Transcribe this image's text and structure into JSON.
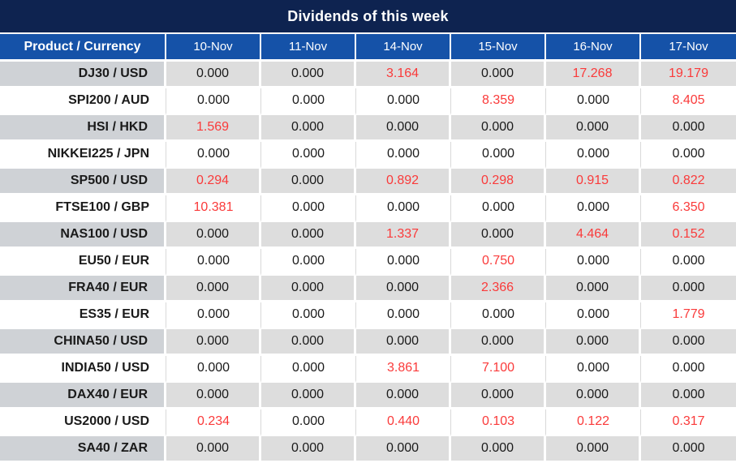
{
  "title": "Dividends of this week",
  "colors": {
    "title_bar_bg": "#0e2350",
    "header_row_bg": "#1552a8",
    "header_text": "#ffffff",
    "gray_row_label_bg": "#cfd2d6",
    "gray_row_cell_bg": "#dddddd",
    "white_row_bg": "#ffffff",
    "zero_value_text": "#1a1a1a",
    "nonzero_value_text": "#fa3a3a",
    "grid_line": "#d9d9d9"
  },
  "chart_data": {
    "type": "table",
    "title": "Dividends of this week",
    "columns": [
      "Product / Currency",
      "10-Nov",
      "11-Nov",
      "14-Nov",
      "15-Nov",
      "16-Nov",
      "17-Nov"
    ],
    "rows": [
      {
        "product": "DJ30 / USD",
        "values": [
          "0.000",
          "0.000",
          "3.164",
          "0.000",
          "17.268",
          "19.179"
        ]
      },
      {
        "product": "SPI200 / AUD",
        "values": [
          "0.000",
          "0.000",
          "0.000",
          "8.359",
          "0.000",
          "8.405"
        ]
      },
      {
        "product": "HSI / HKD",
        "values": [
          "1.569",
          "0.000",
          "0.000",
          "0.000",
          "0.000",
          "0.000"
        ]
      },
      {
        "product": "NIKKEI225 / JPN",
        "values": [
          "0.000",
          "0.000",
          "0.000",
          "0.000",
          "0.000",
          "0.000"
        ]
      },
      {
        "product": "SP500 / USD",
        "values": [
          "0.294",
          "0.000",
          "0.892",
          "0.298",
          "0.915",
          "0.822"
        ]
      },
      {
        "product": "FTSE100 / GBP",
        "values": [
          "10.381",
          "0.000",
          "0.000",
          "0.000",
          "0.000",
          "6.350"
        ]
      },
      {
        "product": "NAS100 / USD",
        "values": [
          "0.000",
          "0.000",
          "1.337",
          "0.000",
          "4.464",
          "0.152"
        ]
      },
      {
        "product": "EU50 / EUR",
        "values": [
          "0.000",
          "0.000",
          "0.000",
          "0.750",
          "0.000",
          "0.000"
        ]
      },
      {
        "product": "FRA40 / EUR",
        "values": [
          "0.000",
          "0.000",
          "0.000",
          "2.366",
          "0.000",
          "0.000"
        ]
      },
      {
        "product": "ES35 / EUR",
        "values": [
          "0.000",
          "0.000",
          "0.000",
          "0.000",
          "0.000",
          "1.779"
        ]
      },
      {
        "product": "CHINA50 / USD",
        "values": [
          "0.000",
          "0.000",
          "0.000",
          "0.000",
          "0.000",
          "0.000"
        ]
      },
      {
        "product": "INDIA50 / USD",
        "values": [
          "0.000",
          "0.000",
          "3.861",
          "7.100",
          "0.000",
          "0.000"
        ]
      },
      {
        "product": "DAX40 / EUR",
        "values": [
          "0.000",
          "0.000",
          "0.000",
          "0.000",
          "0.000",
          "0.000"
        ]
      },
      {
        "product": "US2000 / USD",
        "values": [
          "0.234",
          "0.000",
          "0.440",
          "0.103",
          "0.122",
          "0.317"
        ]
      },
      {
        "product": "SA40 / ZAR",
        "values": [
          "0.000",
          "0.000",
          "0.000",
          "0.000",
          "0.000",
          "0.000"
        ]
      }
    ]
  }
}
